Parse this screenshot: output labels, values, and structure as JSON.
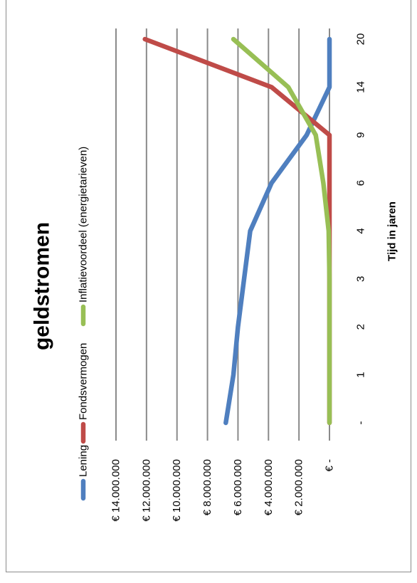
{
  "chart_data": {
    "type": "line",
    "title": "geldstromen",
    "xlabel": "Tijd in jaren",
    "ylabel": "",
    "categories": [
      "-",
      "1",
      "2",
      "3",
      "4",
      "6",
      "9",
      "14",
      "20"
    ],
    "y_tick_labels": [
      "€ -",
      "€ 2.000.000",
      "€ 4.000.000",
      "€ 6.000.000",
      "€ 8.000.000",
      "€ 10.000.000",
      "€ 12.000.000",
      "€ 14.000.000"
    ],
    "y_ticks": [
      0,
      2000000,
      4000000,
      6000000,
      8000000,
      10000000,
      12000000,
      14000000
    ],
    "ylim": [
      0,
      14000000
    ],
    "grid": true,
    "legend_position": "top",
    "orientation": "rotated 90° clockwise",
    "series": [
      {
        "name": "Lening",
        "color": "#4f7fbf",
        "values": [
          6800000,
          6300000,
          6000000,
          5600000,
          5200000,
          3800000,
          1500000,
          0,
          0
        ]
      },
      {
        "name": "Fondsvermogen",
        "color": "#bf4b48",
        "values": [
          0,
          0,
          0,
          0,
          0,
          0,
          0,
          3800000,
          12100000
        ]
      },
      {
        "name": "Inflatievoordeel (energietarieven)",
        "color": "#98bf55",
        "values": [
          0,
          0,
          0,
          0,
          50000,
          400000,
          900000,
          2700000,
          6300000
        ]
      }
    ]
  }
}
